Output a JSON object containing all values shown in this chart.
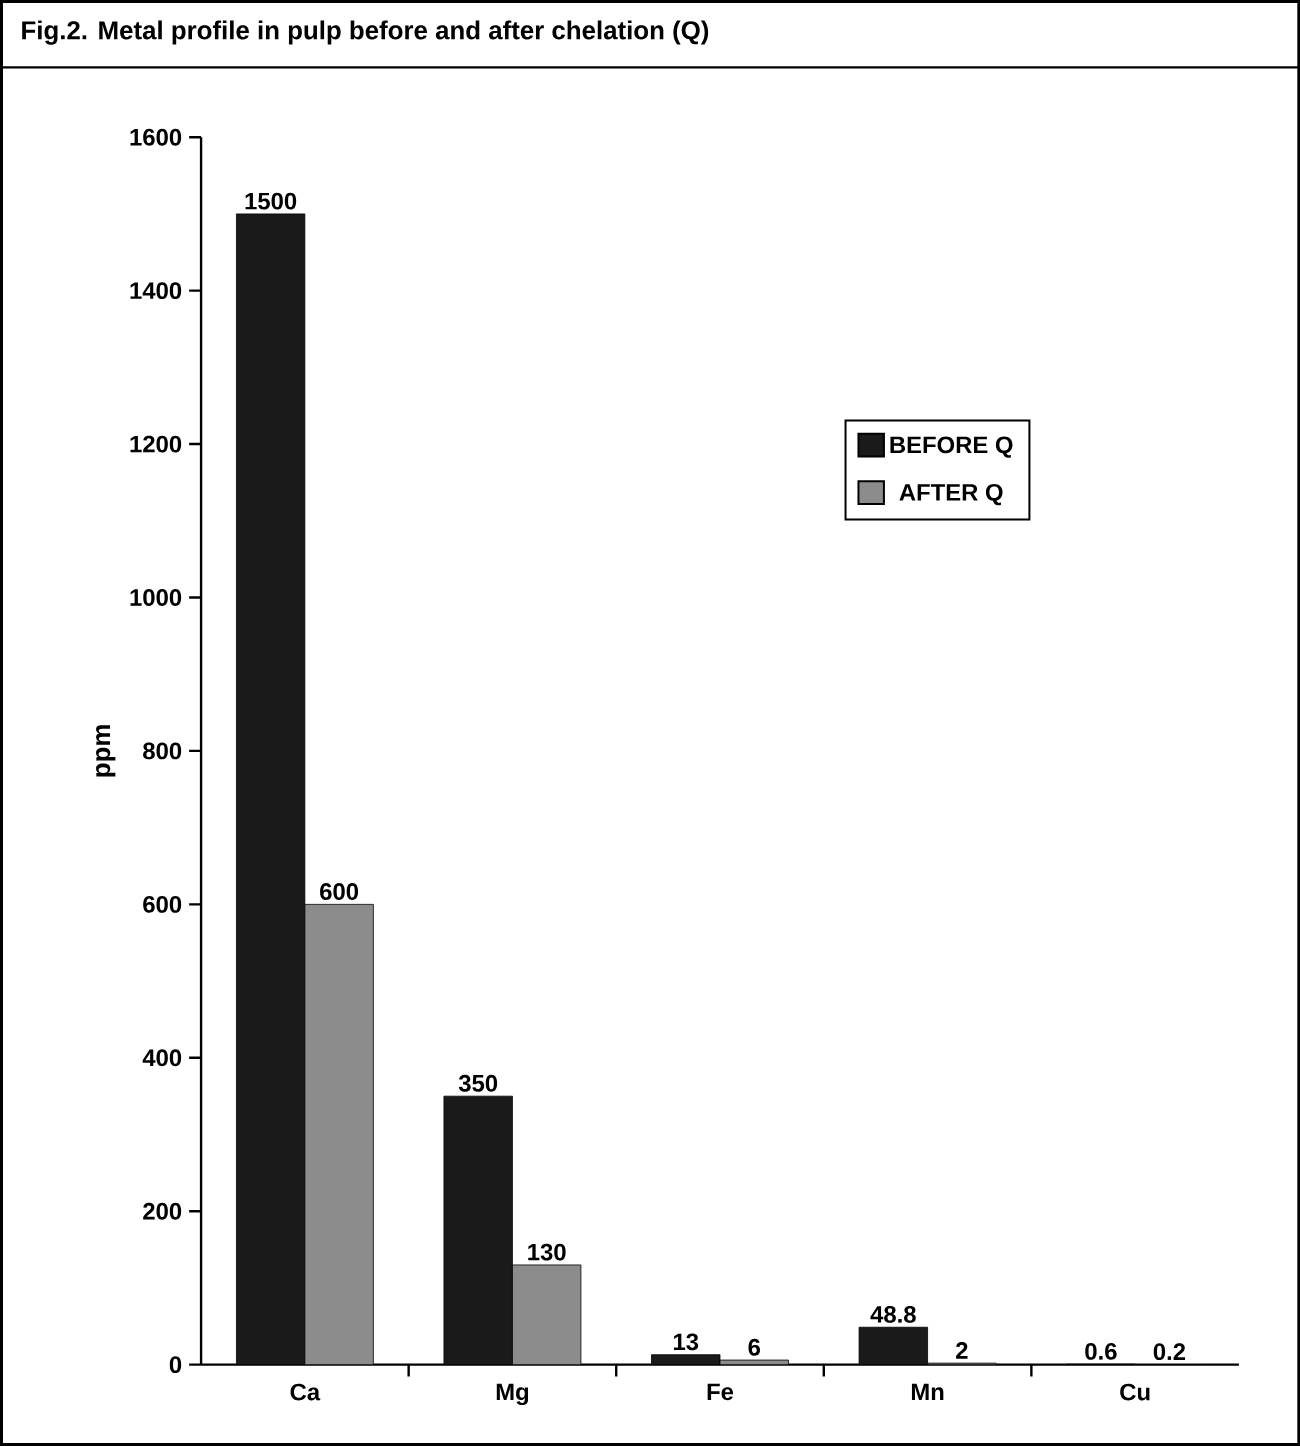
{
  "chart_data": {
    "type": "bar",
    "title": "Fig.2. Metal profile in pulp before and after chelation (Q)",
    "ylabel": "ppm",
    "categories": [
      "Ca",
      "Mg",
      "Fe",
      "Mn",
      "Cu"
    ],
    "series": [
      {
        "name": "BEFORE Q",
        "color": "#1a1a1a",
        "values": [
          1500,
          350,
          13,
          48.8,
          0.6
        ]
      },
      {
        "name": "AFTER Q",
        "color": "#8c8c8c",
        "values": [
          600,
          130,
          6,
          2,
          0.2
        ]
      }
    ],
    "ylim": [
      0,
      1600
    ],
    "yticks": [
      0,
      200,
      400,
      600,
      800,
      1000,
      1200,
      1400,
      1600
    ],
    "data_labels": true,
    "legend": "right"
  }
}
